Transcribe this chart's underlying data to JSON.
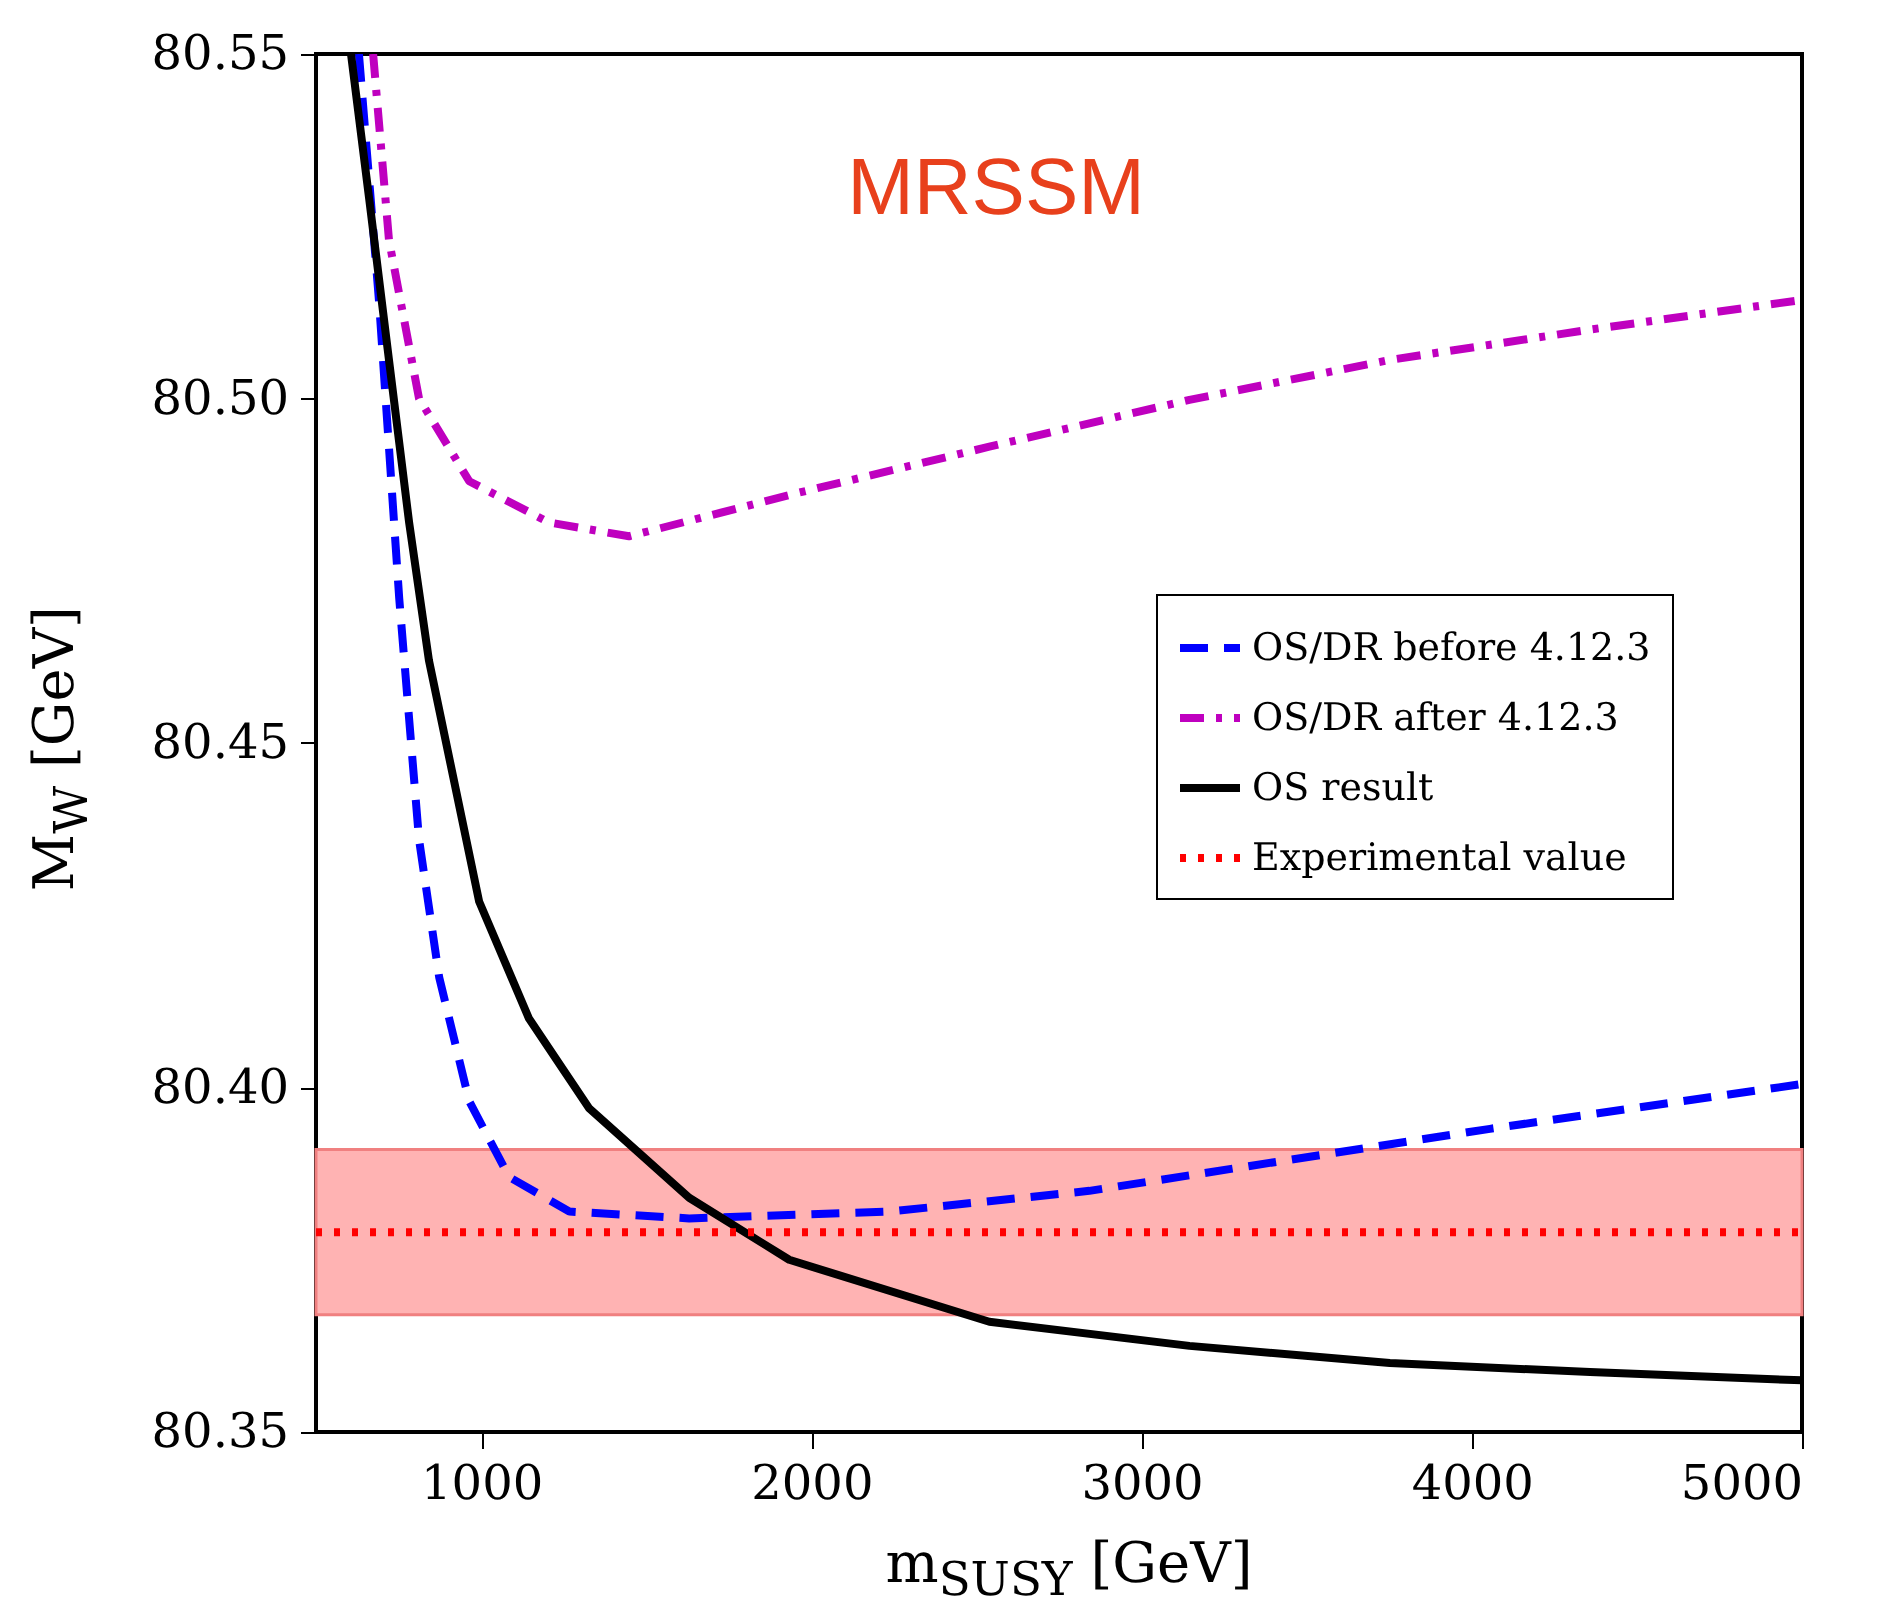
{
  "chart_data": {
    "type": "line",
    "xlabel": "m$_{SUSY}$ [GeV]",
    "ylabel": "M$_{W}$ [GeV]",
    "annotations": [
      "MRSSM"
    ],
    "xlim": [
      500,
      5000
    ],
    "xticks": [
      1000,
      2000,
      3000,
      4000,
      5000
    ],
    "ylim": [
      80.35,
      80.55
    ],
    "yticks": [
      80.35,
      {
        "value": 80.4,
        "label": "80.40"
      },
      80.45,
      {
        "value": 80.5,
        "label": "80.50"
      },
      80.55
    ],
    "grid": false,
    "legend": "right",
    "marker": "none",
    "bands": [
      {
        "axis": "y",
        "from": 80.367,
        "to": 80.391,
        "color": "#ffb3b3"
      }
    ],
    "series": [
      {
        "name": "OS/DR before 4.12.3",
        "color": "#0000ff",
        "line_style": "dashed",
        "x": [
          630,
          691,
          752,
          812,
          873,
          964,
          1085,
          1267,
          1630,
          2236,
          2842,
          3448,
          4055,
          5000
        ],
        "values": [
          80.55,
          80.514,
          80.471,
          80.436,
          80.416,
          80.398,
          80.387,
          80.382,
          80.381,
          80.382,
          80.385,
          80.3895,
          80.394,
          80.4005
        ]
      },
      {
        "name": "OS/DR after 4.12.3",
        "color": "#bf00bf",
        "line_style": "dashdot",
        "x": [
          673,
          721,
          812,
          964,
          1206,
          1448,
          1933,
          2539,
          3145,
          3752,
          4358,
          5000
        ],
        "values": [
          80.55,
          80.523,
          80.5,
          80.488,
          80.482,
          80.48,
          80.486,
          80.493,
          80.4998,
          80.5056,
          80.51,
          80.5143
        ]
      },
      {
        "name": "OS result",
        "color": "#000000",
        "line_style": "solid",
        "x": [
          606,
          661,
          721,
          782,
          842,
          994,
          1145,
          1327,
          1630,
          1933,
          2539,
          3145,
          3752,
          4358,
          5000
        ],
        "values": [
          80.55,
          80.529,
          80.5056,
          80.482,
          80.462,
          80.427,
          80.41,
          80.397,
          80.384,
          80.375,
          80.366,
          80.3625,
          80.36,
          80.3587,
          80.3575
        ]
      },
      {
        "name": "Experimental value",
        "color": "#ff0000",
        "line_style": "dotted",
        "x": [
          500,
          5000
        ],
        "values": [
          80.379,
          80.379
        ]
      }
    ]
  }
}
